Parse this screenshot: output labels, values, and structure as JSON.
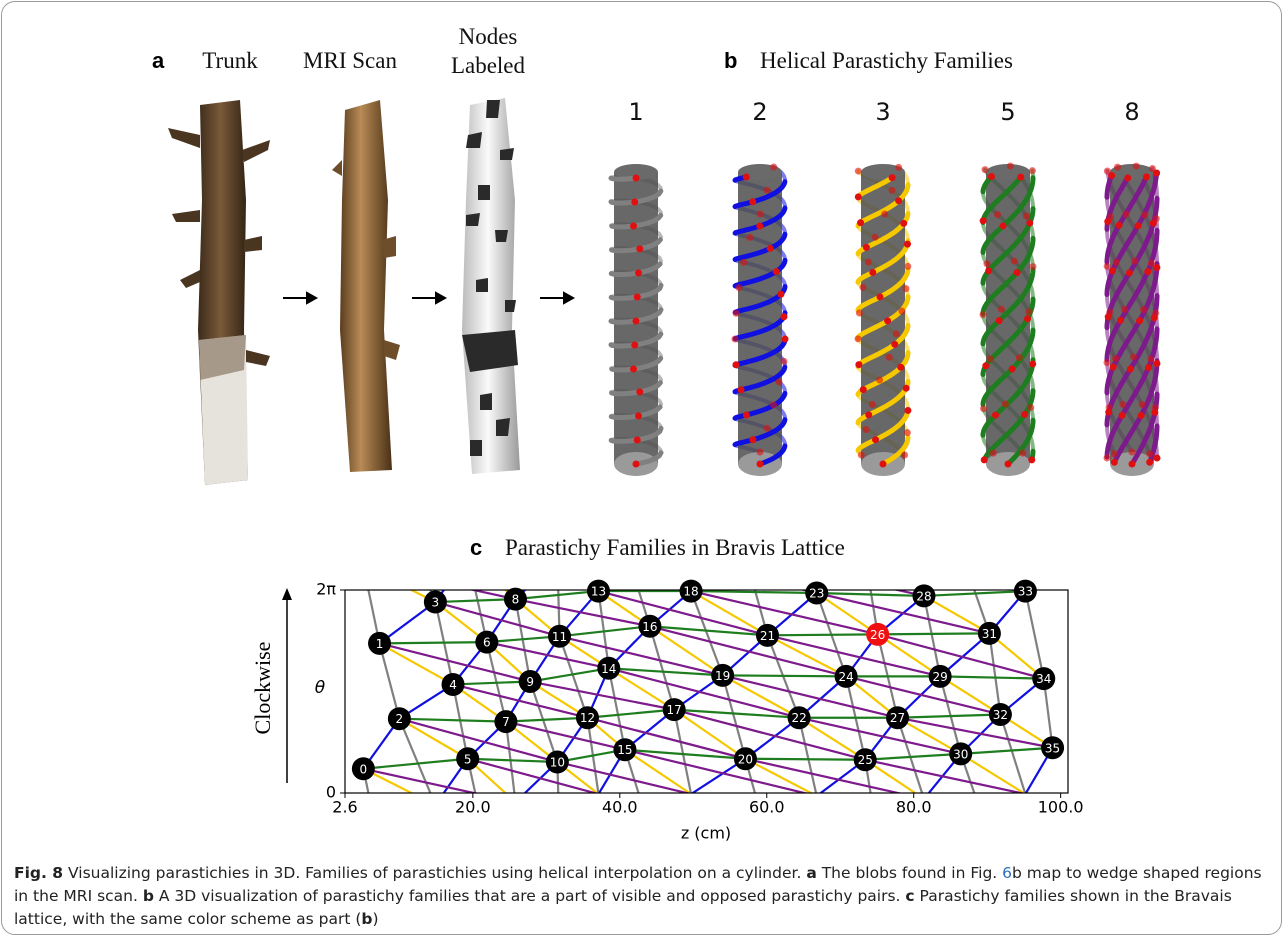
{
  "panel_a": {
    "letter": "a",
    "labels": [
      "Trunk",
      "MRI Scan",
      "Nodes Labeled"
    ]
  },
  "panel_b": {
    "letter": "b",
    "title": "Helical Parastichy Families",
    "families": [
      {
        "label": 1,
        "color": "#808080"
      },
      {
        "label": 2,
        "color": "#1010e0"
      },
      {
        "label": 3,
        "color": "#f5c800"
      },
      {
        "label": 5,
        "color": "#1e7d1e"
      },
      {
        "label": 8,
        "color": "#7d1a8c"
      }
    ]
  },
  "chart_data": {
    "type": "scatter",
    "letter": "c",
    "title": "Parastichy Families in Bravis Lattice",
    "xlabel": "z (cm)",
    "ylabel": "θ",
    "direction_label": "Clockwise",
    "labels": [
      0,
      1,
      2,
      3,
      4,
      5,
      6,
      7,
      8,
      9,
      10,
      11,
      12,
      13,
      14,
      15,
      16,
      17,
      18,
      19,
      20,
      21,
      22,
      23,
      24,
      25,
      26,
      27,
      28,
      29,
      30,
      31,
      32,
      33,
      34,
      35
    ],
    "x": [
      5.1,
      7.3,
      10.0,
      14.9,
      17.3,
      19.3,
      21.9,
      24.5,
      25.8,
      27.8,
      31.5,
      31.8,
      35.6,
      37.1,
      38.5,
      40.7,
      44.1,
      47.4,
      49.7,
      54.0,
      57.1,
      60.1,
      64.4,
      66.8,
      70.8,
      73.4,
      75.1,
      77.8,
      81.4,
      83.6,
      86.4,
      90.3,
      91.8,
      95.2,
      97.7,
      98.9
    ],
    "y": [
      0.75,
      4.63,
      2.3,
      5.91,
      3.36,
      1.06,
      4.67,
      2.21,
      6.0,
      3.45,
      0.96,
      4.85,
      2.33,
      6.25,
      3.86,
      1.34,
      5.16,
      2.58,
      6.25,
      3.64,
      1.06,
      4.88,
      2.33,
      6.19,
      3.61,
      1.03,
      4.91,
      2.33,
      6.1,
      3.61,
      1.21,
      4.94,
      2.43,
      6.25,
      3.54,
      1.4
    ],
    "node_color": "#000000",
    "highlight": 26,
    "highlight_color": "#f01010",
    "xlim": [
      2.6,
      101.0
    ],
    "ylim": [
      0,
      6.283
    ],
    "xticks": [
      2.6,
      {
        "value": 20,
        "label": "20.0"
      },
      {
        "value": 40,
        "label": "40.0"
      },
      {
        "value": 60,
        "label": "60.0"
      },
      {
        "value": 80,
        "label": "80.0"
      },
      {
        "value": 100,
        "label": "100.0"
      }
    ],
    "yticks": [
      0,
      {
        "value": 6.283,
        "label": "2π"
      }
    ]
  },
  "caption": {
    "label": "Fig. 8",
    "intro": " Visualizing parastichies in 3D. Families of parastichies using helical interpolation on a cylinder. ",
    "a": "a",
    "a_text_1": " The blobs found in Fig. ",
    "fig_ref": "6",
    "a_text_2": "b map to wedge shaped regions in the MRI scan. ",
    "b": "b",
    "b_text": " A 3D visualization of parastichy families that are a part of visible and opposed parastichy pairs. ",
    "c": "c",
    "c_text": " Parastichy families shown in the Bravais lattice, with the same color scheme as part (",
    "b_ref": "b",
    "close": ")"
  }
}
